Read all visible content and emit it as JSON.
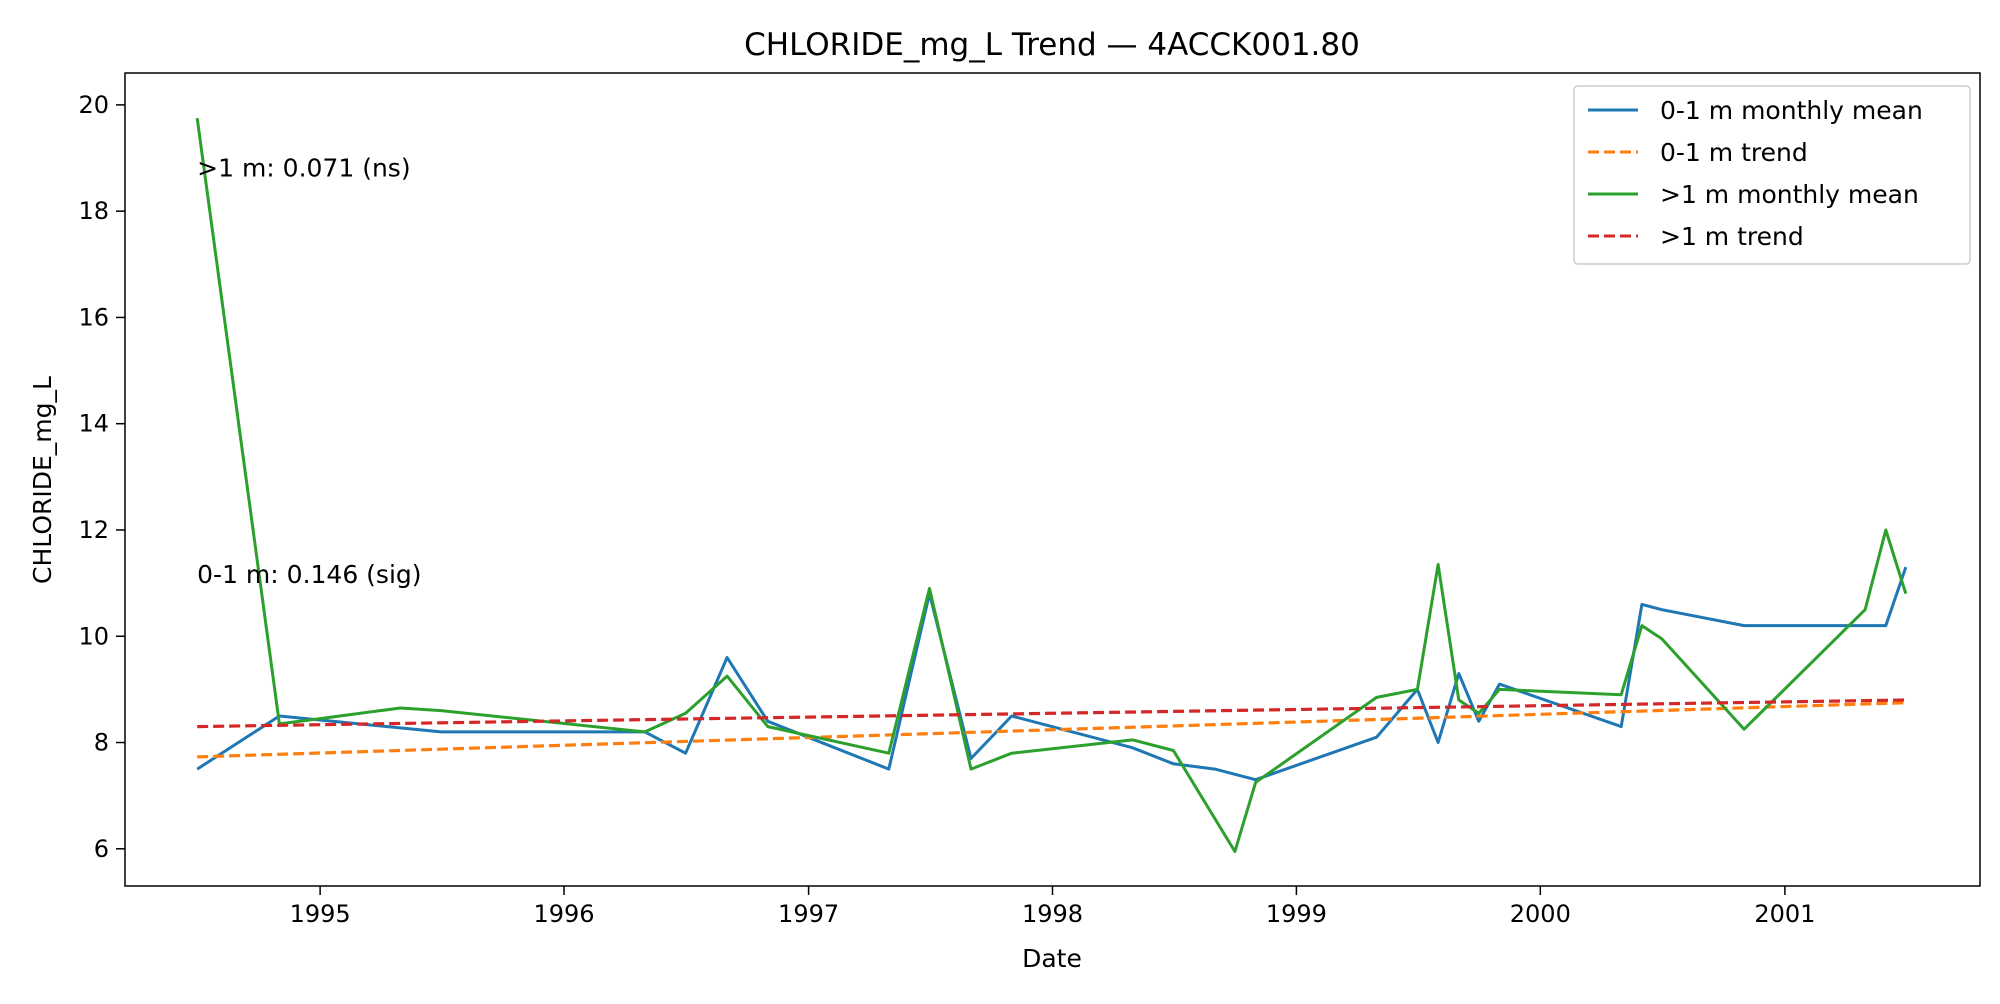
{
  "chart_data": {
    "type": "line",
    "title": "CHLORIDE_mg_L Trend — 4ACCK001.80",
    "xlabel": "Date",
    "ylabel": "CHLORIDE_mg_L",
    "x_range": [
      "1994-03-15",
      "2001-10-20"
    ],
    "ylim": [
      5.3,
      20.6
    ],
    "x_ticks": [
      {
        "date": "1995-01-01",
        "label": "1995"
      },
      {
        "date": "1996-01-01",
        "label": "1996"
      },
      {
        "date": "1997-01-01",
        "label": "1997"
      },
      {
        "date": "1998-01-01",
        "label": "1998"
      },
      {
        "date": "1999-01-01",
        "label": "1999"
      },
      {
        "date": "2000-01-01",
        "label": "2000"
      },
      {
        "date": "2001-01-01",
        "label": "2001"
      }
    ],
    "y_ticks": [
      6,
      8,
      10,
      12,
      14,
      16,
      18,
      20
    ],
    "grid": false,
    "legend_position": "top-right",
    "series": [
      {
        "name": "0-1 m monthly mean",
        "color": "#1f77b4",
        "style": "solid",
        "points": [
          [
            "1994-07-01",
            7.5
          ],
          [
            "1994-11-01",
            8.5
          ],
          [
            "1995-07-01",
            8.2
          ],
          [
            "1996-05-01",
            8.2
          ],
          [
            "1996-07-01",
            7.8
          ],
          [
            "1996-09-01",
            9.6
          ],
          [
            "1996-11-01",
            8.4
          ],
          [
            "1997-05-01",
            7.5
          ],
          [
            "1997-07-01",
            10.8
          ],
          [
            "1997-09-01",
            7.7
          ],
          [
            "1997-11-01",
            8.5
          ],
          [
            "1998-05-01",
            7.9
          ],
          [
            "1998-07-01",
            7.6
          ],
          [
            "1998-09-01",
            7.5
          ],
          [
            "1998-11-01",
            7.3
          ],
          [
            "1999-05-01",
            8.1
          ],
          [
            "1999-07-01",
            9.0
          ],
          [
            "1999-08-01",
            8.0
          ],
          [
            "1999-09-01",
            9.3
          ],
          [
            "1999-10-01",
            8.4
          ],
          [
            "1999-11-01",
            9.1
          ],
          [
            "2000-05-01",
            8.3
          ],
          [
            "2000-06-01",
            10.6
          ],
          [
            "2000-07-01",
            10.5
          ],
          [
            "2000-11-01",
            10.2
          ],
          [
            "2001-06-01",
            10.2
          ],
          [
            "2001-07-01",
            11.3
          ]
        ]
      },
      {
        "name": "0-1 m trend",
        "color": "#ff7f0e",
        "style": "dashed",
        "points": [
          [
            "1994-07-01",
            7.73
          ],
          [
            "2001-07-01",
            8.75
          ]
        ]
      },
      {
        "name": ">1 m monthly mean",
        "color": "#2ca02c",
        "style": "solid",
        "points": [
          [
            "1994-07-01",
            19.75
          ],
          [
            "1994-11-01",
            8.35
          ],
          [
            "1995-01-01",
            8.45
          ],
          [
            "1995-05-01",
            8.65
          ],
          [
            "1995-07-01",
            8.6
          ],
          [
            "1996-05-01",
            8.2
          ],
          [
            "1996-07-01",
            8.55
          ],
          [
            "1996-09-01",
            9.25
          ],
          [
            "1996-11-01",
            8.3
          ],
          [
            "1997-05-01",
            7.8
          ],
          [
            "1997-07-01",
            10.9
          ],
          [
            "1997-09-01",
            7.5
          ],
          [
            "1997-11-01",
            7.8
          ],
          [
            "1998-05-01",
            8.05
          ],
          [
            "1998-07-01",
            7.85
          ],
          [
            "1998-10-01",
            5.95
          ],
          [
            "1998-11-01",
            7.25
          ],
          [
            "1999-05-01",
            8.85
          ],
          [
            "1999-07-01",
            9.0
          ],
          [
            "1999-08-01",
            11.35
          ],
          [
            "1999-09-01",
            8.8
          ],
          [
            "1999-10-01",
            8.55
          ],
          [
            "1999-11-01",
            9.0
          ],
          [
            "2000-05-01",
            8.9
          ],
          [
            "2000-06-01",
            10.2
          ],
          [
            "2000-07-01",
            9.95
          ],
          [
            "2000-11-01",
            8.25
          ],
          [
            "2001-05-01",
            10.5
          ],
          [
            "2001-06-01",
            12.0
          ],
          [
            "2001-07-01",
            10.8
          ]
        ]
      },
      {
        "name": ">1 m trend",
        "color": "#d62728",
        "style": "dashed",
        "points": [
          [
            "1994-07-01",
            8.3
          ],
          [
            "2001-07-01",
            8.8
          ]
        ]
      }
    ],
    "annotations": [
      {
        "text": ">1 m: 0.071 (ns)",
        "date": "1994-07-01",
        "y": 18.65
      },
      {
        "text": "0-1 m: 0.146 (sig)",
        "date": "1994-07-01",
        "y": 11.0
      }
    ]
  }
}
